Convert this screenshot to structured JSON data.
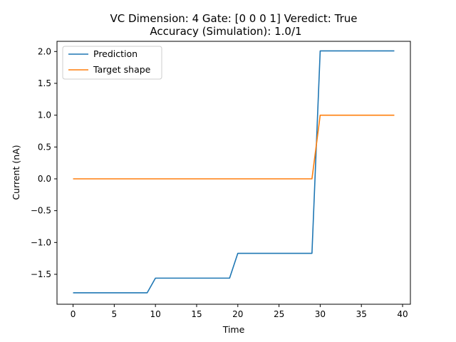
{
  "chart_data": {
    "type": "line",
    "title": "VC Dimension: 4 Gate: [0 0 0 1] Veredict: True",
    "subtitle": "Accuracy (Simulation): 1.0/1",
    "xlabel": "Time",
    "ylabel": "Current (nA)",
    "xlim": [
      -1.95,
      40.95
    ],
    "ylim": [
      -1.97,
      2.16
    ],
    "xticks": [
      0,
      5,
      10,
      15,
      20,
      25,
      30,
      35,
      40
    ],
    "yticks": [
      -1.5,
      -1.0,
      -0.5,
      0.0,
      0.5,
      1.0,
      1.5,
      2.0
    ],
    "ytick_labels": [
      "−1.5",
      "−1.0",
      "−0.5",
      "0.0",
      "0.5",
      "1.0",
      "1.5",
      "2.0"
    ],
    "grid": false,
    "legend_position": "top-left",
    "series": [
      {
        "name": "Prediction",
        "color": "#1f77b4",
        "x": [
          0,
          1,
          2,
          3,
          4,
          5,
          6,
          7,
          8,
          9,
          10,
          11,
          12,
          13,
          14,
          15,
          16,
          17,
          18,
          19,
          20,
          21,
          22,
          23,
          24,
          25,
          26,
          27,
          28,
          29,
          30,
          31,
          32,
          33,
          34,
          35,
          36,
          37,
          38,
          39
        ],
        "values": [
          -1.79,
          -1.79,
          -1.79,
          -1.79,
          -1.79,
          -1.79,
          -1.79,
          -1.79,
          -1.79,
          -1.79,
          -1.56,
          -1.56,
          -1.56,
          -1.56,
          -1.56,
          -1.56,
          -1.56,
          -1.56,
          -1.56,
          -1.56,
          -1.17,
          -1.17,
          -1.17,
          -1.17,
          -1.17,
          -1.17,
          -1.17,
          -1.17,
          -1.17,
          -1.17,
          2.01,
          2.01,
          2.01,
          2.01,
          2.01,
          2.01,
          2.01,
          2.01,
          2.01,
          2.01
        ]
      },
      {
        "name": "Target shape",
        "color": "#ff7f0e",
        "x": [
          0,
          1,
          2,
          3,
          4,
          5,
          6,
          7,
          8,
          9,
          10,
          11,
          12,
          13,
          14,
          15,
          16,
          17,
          18,
          19,
          20,
          21,
          22,
          23,
          24,
          25,
          26,
          27,
          28,
          29,
          30,
          31,
          32,
          33,
          34,
          35,
          36,
          37,
          38,
          39
        ],
        "values": [
          0,
          0,
          0,
          0,
          0,
          0,
          0,
          0,
          0,
          0,
          0,
          0,
          0,
          0,
          0,
          0,
          0,
          0,
          0,
          0,
          0,
          0,
          0,
          0,
          0,
          0,
          0,
          0,
          0,
          0,
          1,
          1,
          1,
          1,
          1,
          1,
          1,
          1,
          1,
          1
        ]
      }
    ]
  }
}
